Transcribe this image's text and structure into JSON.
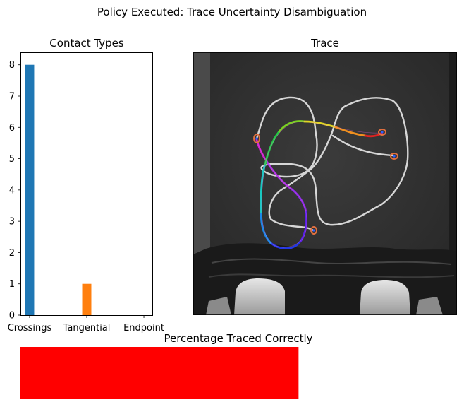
{
  "figure": {
    "suptitle": "Policy Executed: Trace Uncertainty Disambiguation"
  },
  "chart_data": [
    {
      "type": "bar",
      "title": "Contact Types",
      "categories": [
        "Crossings",
        "Tangential",
        "Endpoint"
      ],
      "values": [
        8,
        1,
        0
      ],
      "colors": [
        "#1f77b4",
        "#ff7f0e",
        "#2ca02c"
      ],
      "ylim": [
        0,
        8.4
      ],
      "yticks": [
        0,
        1,
        2,
        3,
        4,
        5,
        6,
        7,
        8
      ],
      "xlabel": "",
      "ylabel": "",
      "grid": false
    },
    {
      "type": "image",
      "title": "Trace",
      "content": "grayscale camera image of a cable on a dark surface with a rainbow-coloured traced path and endpoint markers"
    },
    {
      "type": "bar",
      "title": "Percentage Traced Correctly",
      "orientation": "horizontal",
      "values": [
        0.63
      ],
      "bar_color": "#ff0000",
      "xlim": [
        0,
        1
      ],
      "axes_visible": false
    }
  ]
}
